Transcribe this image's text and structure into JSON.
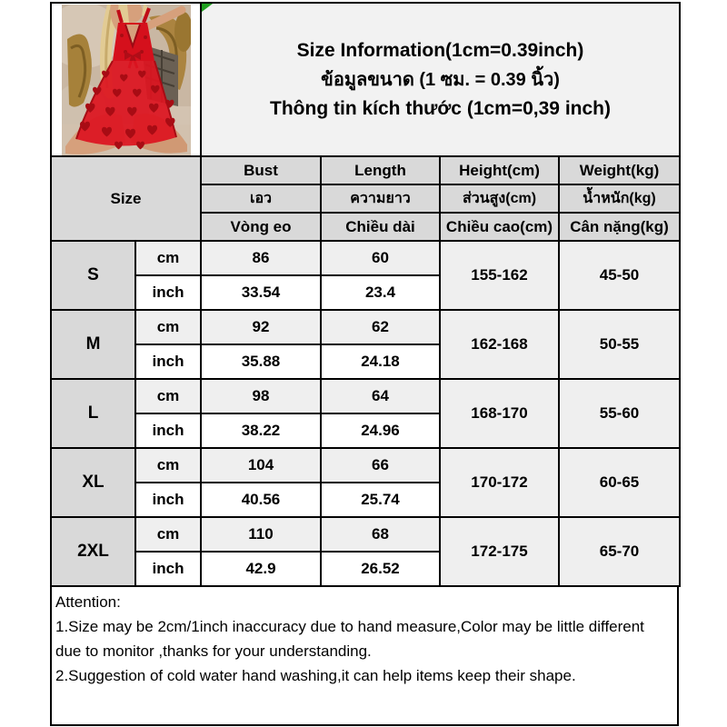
{
  "title": {
    "en": "Size Information(1cm=0.39inch)",
    "th": "ข้อมูลขนาด (1 ซม. = 0.39 นิ้ว)",
    "vi": "Thông tin kích thước (1cm=0,39 inch)"
  },
  "table": {
    "size_label": "Size",
    "columns": [
      {
        "en": "Bust",
        "th": "เอว",
        "vi": "Vòng eo"
      },
      {
        "en": "Length",
        "th": "ความยาว",
        "vi": "Chiều dài"
      },
      {
        "en": "Height(cm)",
        "th": "ส่วนสูง(cm)",
        "vi": "Chiều cao(cm)"
      },
      {
        "en": "Weight(kg)",
        "th": "น้ำหนัก(kg)",
        "vi": "Cân nặng(kg)"
      }
    ],
    "unit_labels": {
      "cm": "cm",
      "inch": "inch"
    },
    "rows": [
      {
        "size": "S",
        "bust_cm": "86",
        "length_cm": "60",
        "bust_inch": "33.54",
        "length_inch": "23.4",
        "height": "155-162",
        "weight": "45-50"
      },
      {
        "size": "M",
        "bust_cm": "92",
        "length_cm": "62",
        "bust_inch": "35.88",
        "length_inch": "24.18",
        "height": "162-168",
        "weight": "50-55"
      },
      {
        "size": "L",
        "bust_cm": "98",
        "length_cm": "64",
        "bust_inch": "38.22",
        "length_inch": "24.96",
        "height": "168-170",
        "weight": "55-60"
      },
      {
        "size": "XL",
        "bust_cm": "104",
        "length_cm": "66",
        "bust_inch": "40.56",
        "length_inch": "25.74",
        "height": "170-172",
        "weight": "60-65"
      },
      {
        "size": "2XL",
        "bust_cm": "110",
        "length_cm": "68",
        "bust_inch": "42.9",
        "length_inch": "26.52",
        "height": "172-175",
        "weight": "65-70"
      }
    ]
  },
  "attention": {
    "heading": "Attention:",
    "line1": "1.Size may be 2cm/1inch inaccuracy due to hand measure,Color may be little different due to monitor ,thanks for your understanding.",
    "line2": "2.Suggestion of cold water hand washing,it can help items keep their shape."
  },
  "photo": {
    "alt": "model wearing red sheer heart-pattern babydoll lingerie on a bed"
  },
  "colors": {
    "border": "#000000",
    "header_bg": "#d9d9d9",
    "cm_row_bg": "#efefef",
    "title_bg": "#f2f2f2",
    "marker_green": "#21a121",
    "dress_red": "#d5101c"
  }
}
